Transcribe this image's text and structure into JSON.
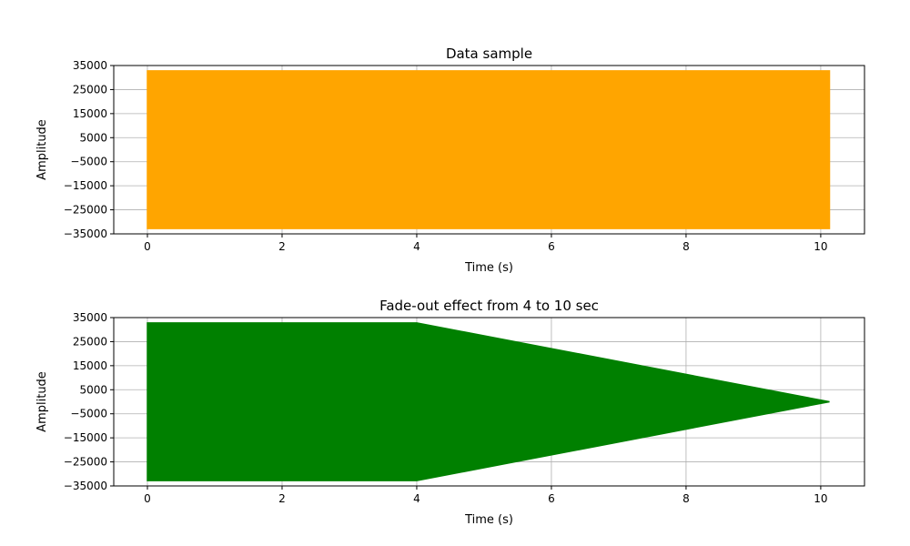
{
  "chart_data": [
    {
      "type": "area",
      "title": "Data sample",
      "xlabel": "Time (s)",
      "ylabel": "Amplitude",
      "xlim": [
        -0.5,
        10.65
      ],
      "ylim": [
        -35000,
        35000
      ],
      "xticks": [
        0,
        2,
        4,
        6,
        8,
        10
      ],
      "yticks": [
        -35000,
        -25000,
        -15000,
        -5000,
        5000,
        15000,
        25000,
        35000
      ],
      "grid": true,
      "color": "#ffa500",
      "series": [
        {
          "x": [
            0,
            4,
            10.13
          ],
          "upper": [
            32767,
            32767,
            32767
          ],
          "lower": [
            -32767,
            -32767,
            -32767
          ]
        }
      ]
    },
    {
      "type": "area",
      "title": "Fade-out effect from 4 to 10 sec",
      "xlabel": "Time (s)",
      "ylabel": "Amplitude",
      "xlim": [
        -0.5,
        10.65
      ],
      "ylim": [
        -35000,
        35000
      ],
      "xticks": [
        0,
        2,
        4,
        6,
        8,
        10
      ],
      "yticks": [
        -35000,
        -25000,
        -15000,
        -5000,
        5000,
        15000,
        25000,
        35000
      ],
      "grid": true,
      "color": "#008000",
      "series": [
        {
          "x": [
            0,
            4,
            10.13
          ],
          "upper": [
            32767,
            32767,
            0
          ],
          "lower": [
            -32767,
            -32767,
            0
          ]
        }
      ]
    }
  ]
}
